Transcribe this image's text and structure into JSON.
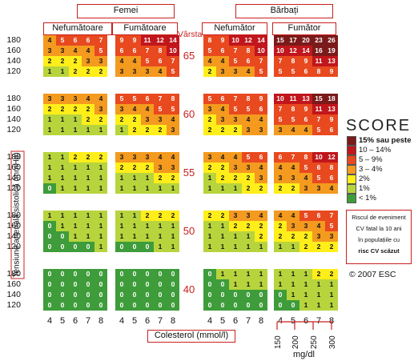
{
  "headers": {
    "women": "Femei",
    "men": "Bărbați",
    "age_title": "Vârsta",
    "non_smoker_women": "Nefumătoare",
    "smoker_women": "Fumătoare",
    "non_smoker_men": "Nefumător",
    "smoker_men": "Fumător"
  },
  "y_axis_title": "Tensiune arterială sistolică (mmHg)",
  "x_axis_title": "Colesterol (mmol/l)",
  "mgdl_unit": "mg/dl",
  "mgdl_ticks": [
    "150",
    "200",
    "250",
    "300"
  ],
  "legend": {
    "logo": "SCORE",
    "items": [
      "15% sau peste",
      "10 – 14%",
      "5 – 9%",
      "3 – 4%",
      "2%",
      "1%",
      "< 1%"
    ],
    "colors": [
      "#7a1a1a",
      "#c0161c",
      "#e8491f",
      "#f39a1f",
      "#ffee1a",
      "#b7d43d",
      "#3e9c3a"
    ],
    "note_line1": "Riscul de eveniment",
    "note_line2": "CV fatal la 10 ani",
    "note_line3": "în populațiile cu",
    "note_line4": "risc CV scăzut",
    "copyright": "© 2007 ESC"
  },
  "chart_data": {
    "type": "heatmap",
    "title": "",
    "x_label": "Colesterol (mmol/l)",
    "y_label": "Tensiune arterială sistolică (mmHg)",
    "cholesterol": [
      "4",
      "5",
      "6",
      "7",
      "8"
    ],
    "sbp": [
      "180",
      "160",
      "140",
      "120"
    ],
    "ages": [
      "65",
      "60",
      "55",
      "50",
      "40"
    ],
    "groups": [
      "women_nonsmoker",
      "women_smoker",
      "men_nonsmoker",
      "men_smoker"
    ],
    "risk": {
      "65": {
        "women_nonsmoker": [
          [
            4,
            5,
            6,
            6,
            7
          ],
          [
            3,
            3,
            4,
            4,
            5
          ],
          [
            2,
            2,
            2,
            3,
            3
          ],
          [
            1,
            1,
            2,
            2,
            2
          ]
        ],
        "women_smoker": [
          [
            9,
            9,
            11,
            12,
            14
          ],
          [
            6,
            6,
            7,
            8,
            10
          ],
          [
            4,
            4,
            5,
            6,
            7
          ],
          [
            3,
            3,
            3,
            4,
            5
          ]
        ],
        "men_nonsmoker": [
          [
            8,
            9,
            10,
            12,
            14
          ],
          [
            5,
            6,
            7,
            8,
            10
          ],
          [
            4,
            4,
            5,
            6,
            7
          ],
          [
            2,
            3,
            3,
            4,
            5
          ]
        ],
        "men_smoker": [
          [
            15,
            17,
            20,
            23,
            26
          ],
          [
            10,
            12,
            14,
            16,
            19
          ],
          [
            7,
            8,
            9,
            11,
            13
          ],
          [
            5,
            5,
            6,
            8,
            9
          ]
        ]
      },
      "60": {
        "women_nonsmoker": [
          [
            3,
            3,
            3,
            4,
            4
          ],
          [
            2,
            2,
            2,
            2,
            3
          ],
          [
            1,
            1,
            1,
            2,
            2
          ],
          [
            1,
            1,
            1,
            1,
            1
          ]
        ],
        "women_smoker": [
          [
            5,
            5,
            6,
            7,
            8
          ],
          [
            3,
            4,
            4,
            5,
            5
          ],
          [
            2,
            2,
            3,
            3,
            4
          ],
          [
            1,
            2,
            2,
            2,
            3
          ]
        ],
        "men_nonsmoker": [
          [
            5,
            6,
            7,
            8,
            9
          ],
          [
            3,
            4,
            5,
            5,
            6
          ],
          [
            2,
            3,
            3,
            4,
            4
          ],
          [
            2,
            2,
            2,
            3,
            3
          ]
        ],
        "men_smoker": [
          [
            10,
            11,
            13,
            15,
            18
          ],
          [
            7,
            8,
            9,
            11,
            13
          ],
          [
            5,
            5,
            6,
            7,
            9
          ],
          [
            3,
            4,
            4,
            5,
            6
          ]
        ]
      },
      "55": {
        "women_nonsmoker": [
          [
            1,
            1,
            2,
            2,
            2
          ],
          [
            1,
            1,
            1,
            1,
            1
          ],
          [
            1,
            1,
            1,
            1,
            1
          ],
          [
            0,
            1,
            1,
            1,
            1
          ]
        ],
        "women_smoker": [
          [
            3,
            3,
            3,
            4,
            4
          ],
          [
            2,
            2,
            2,
            3,
            3
          ],
          [
            1,
            1,
            1,
            2,
            2
          ],
          [
            1,
            1,
            1,
            1,
            1
          ]
        ],
        "men_nonsmoker": [
          [
            3,
            4,
            4,
            5,
            6
          ],
          [
            2,
            2,
            3,
            3,
            4
          ],
          [
            1,
            2,
            2,
            2,
            3
          ],
          [
            1,
            1,
            1,
            2,
            2
          ]
        ],
        "men_smoker": [
          [
            6,
            7,
            8,
            10,
            12
          ],
          [
            4,
            4,
            5,
            6,
            8
          ],
          [
            3,
            3,
            4,
            5,
            6
          ],
          [
            2,
            2,
            3,
            3,
            4
          ]
        ]
      },
      "50": {
        "women_nonsmoker": [
          [
            1,
            1,
            1,
            1,
            1
          ],
          [
            0,
            1,
            1,
            1,
            1
          ],
          [
            0,
            0,
            1,
            1,
            1
          ],
          [
            0,
            0,
            0,
            0,
            1
          ]
        ],
        "women_smoker": [
          [
            1,
            1,
            2,
            2,
            2
          ],
          [
            1,
            1,
            1,
            1,
            1
          ],
          [
            1,
            1,
            1,
            1,
            1
          ],
          [
            0,
            0,
            0,
            1,
            1
          ]
        ],
        "men_nonsmoker": [
          [
            2,
            2,
            3,
            3,
            4
          ],
          [
            1,
            1,
            2,
            2,
            2
          ],
          [
            1,
            1,
            1,
            1,
            2
          ],
          [
            1,
            1,
            1,
            1,
            1
          ]
        ],
        "men_smoker": [
          [
            4,
            4,
            5,
            6,
            7
          ],
          [
            2,
            3,
            3,
            4,
            5
          ],
          [
            2,
            2,
            2,
            3,
            3
          ],
          [
            1,
            1,
            2,
            2,
            2
          ]
        ]
      },
      "40": {
        "women_nonsmoker": [
          [
            0,
            0,
            0,
            0,
            0
          ],
          [
            0,
            0,
            0,
            0,
            0
          ],
          [
            0,
            0,
            0,
            0,
            0
          ],
          [
            0,
            0,
            0,
            0,
            0
          ]
        ],
        "women_smoker": [
          [
            0,
            0,
            0,
            0,
            0
          ],
          [
            0,
            0,
            0,
            0,
            0
          ],
          [
            0,
            0,
            0,
            0,
            0
          ],
          [
            0,
            0,
            0,
            0,
            0
          ]
        ],
        "men_nonsmoker": [
          [
            0,
            1,
            1,
            1,
            1
          ],
          [
            0,
            0,
            1,
            1,
            1
          ],
          [
            0,
            0,
            0,
            0,
            0
          ],
          [
            0,
            0,
            0,
            0,
            0
          ]
        ],
        "men_smoker": [
          [
            1,
            1,
            1,
            2,
            2
          ],
          [
            1,
            1,
            1,
            1,
            1
          ],
          [
            0,
            1,
            1,
            1,
            1
          ],
          [
            0,
            0,
            1,
            1,
            1
          ]
        ]
      }
    }
  }
}
